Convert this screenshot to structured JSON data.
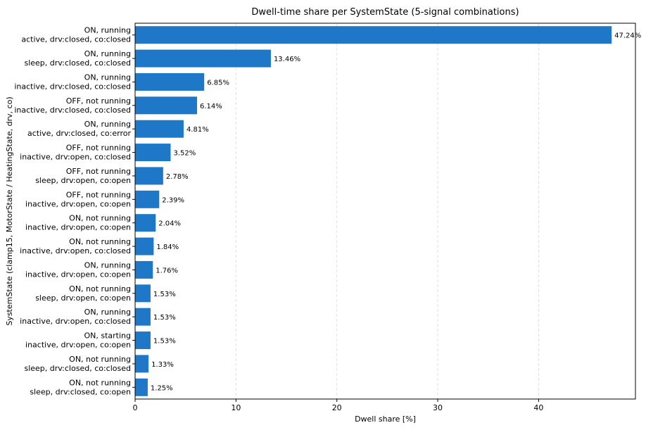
{
  "chart_data": {
    "type": "bar",
    "orientation": "horizontal",
    "title": "Dwell-time share per SystemState (5-signal combinations)",
    "xlabel": "Dwell share [%]",
    "ylabel": "SystemState (clamp15, MotorState / HeatingState, drv, co)",
    "xlim": [
      0,
      49.6
    ],
    "xticks": [
      0,
      10,
      20,
      30,
      40
    ],
    "grid": "x-dashed",
    "bar_color": "#1f77c8",
    "categories": [
      [
        "ON, running",
        "active, drv:closed, co:closed"
      ],
      [
        "ON, running",
        "sleep, drv:closed, co:closed"
      ],
      [
        "ON, running",
        "inactive, drv:closed, co:closed"
      ],
      [
        "OFF, not running",
        "inactive, drv:closed, co:closed"
      ],
      [
        "ON, running",
        "active, drv:closed, co:error"
      ],
      [
        "OFF, not running",
        "inactive, drv:open, co:closed"
      ],
      [
        "OFF, not running",
        "sleep, drv:open, co:open"
      ],
      [
        "OFF, not running",
        "inactive, drv:open, co:open"
      ],
      [
        "ON, not running",
        "inactive, drv:open, co:open"
      ],
      [
        "ON, not running",
        "inactive, drv:open, co:closed"
      ],
      [
        "ON, running",
        "inactive, drv:open, co:open"
      ],
      [
        "ON, not running",
        "sleep, drv:open, co:open"
      ],
      [
        "ON, running",
        "inactive, drv:open, co:closed"
      ],
      [
        "ON, starting",
        "inactive, drv:open, co:open"
      ],
      [
        "ON, not running",
        "sleep, drv:closed, co:closed"
      ],
      [
        "ON, not running",
        "sleep, drv:closed, co:open"
      ]
    ],
    "values": [
      47.24,
      13.46,
      6.85,
      6.14,
      4.81,
      3.52,
      2.78,
      2.39,
      2.04,
      1.84,
      1.76,
      1.53,
      1.53,
      1.53,
      1.33,
      1.25
    ],
    "value_labels": [
      "47.24%",
      "13.46%",
      "6.85%",
      "6.14%",
      "4.81%",
      "3.52%",
      "2.78%",
      "2.39%",
      "2.04%",
      "1.84%",
      "1.76%",
      "1.53%",
      "1.53%",
      "1.53%",
      "1.33%",
      "1.25%"
    ]
  }
}
